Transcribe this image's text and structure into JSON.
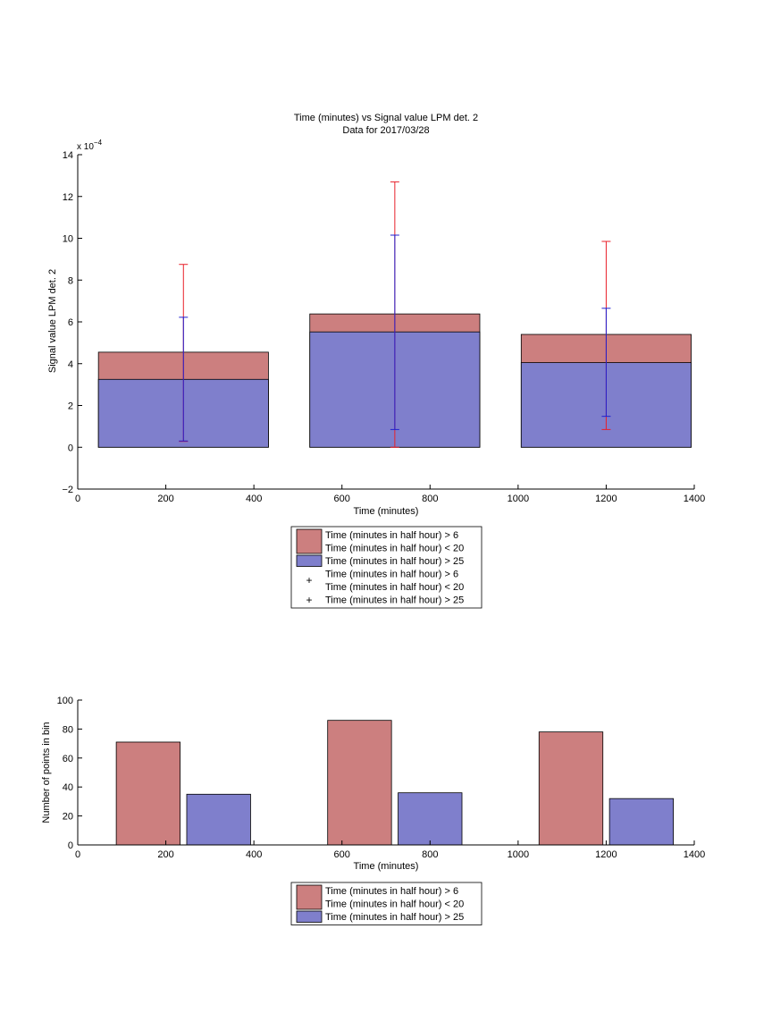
{
  "chart_data": [
    {
      "type": "bar",
      "title": "Time (minutes) vs Signal value LPM det. 2",
      "subtitle": "Data for 2017/03/28",
      "xlabel": "Time (minutes)",
      "ylabel": "Signal value LPM det. 2",
      "y_multiplier_label": "x 10",
      "y_multiplier_exponent": "−4",
      "xlim": [
        0,
        1400
      ],
      "ylim": [
        -2,
        14
      ],
      "xticks": [
        "0",
        "200",
        "400",
        "600",
        "800",
        "1000",
        "1200",
        "1400"
      ],
      "yticks": [
        "−2",
        "0",
        "2",
        "4",
        "6",
        "8",
        "10",
        "12",
        "14"
      ],
      "bar_range": [
        [
          47,
          433
        ],
        [
          527,
          913
        ],
        [
          1007,
          1393
        ]
      ],
      "series": [
        {
          "label_lines": [
            "Time (minutes in half hour) > 6",
            "Time (minutes in half hour) < 20"
          ],
          "color": "#cc7f7f",
          "x": [
            240,
            720,
            1200
          ],
          "values": [
            4.55,
            6.38,
            5.4
          ]
        },
        {
          "label_lines": [
            "Time (minutes in half hour) > 25"
          ],
          "color": "#7f7fcc",
          "x": [
            240,
            720,
            1200
          ],
          "values": [
            3.25,
            5.52,
            4.05
          ]
        }
      ],
      "errorbars": [
        {
          "label_lines": [
            "Time (minutes in half hour) > 6",
            "Time (minutes in half hour) < 20"
          ],
          "color": "#e8202a",
          "marker": "+",
          "x": [
            240,
            720,
            1200
          ],
          "center": [
            4.55,
            6.38,
            5.4
          ],
          "lower": [
            0.28,
            0.0,
            0.85
          ],
          "upper": [
            8.75,
            12.7,
            9.85
          ]
        },
        {
          "label_lines": [
            "Time (minutes in half hour) > 25"
          ],
          "color": "#2020d0",
          "marker": "+",
          "x": [
            240,
            720,
            1200
          ],
          "center": [
            3.25,
            5.52,
            4.05
          ],
          "lower": [
            0.3,
            0.85,
            1.48
          ],
          "upper": [
            6.22,
            10.15,
            6.65
          ]
        }
      ],
      "legend": "below"
    },
    {
      "type": "bar",
      "xlabel": "Time (minutes)",
      "ylabel": "Number of points in bin",
      "xlim": [
        0,
        1400
      ],
      "ylim": [
        0,
        100
      ],
      "xticks": [
        "0",
        "200",
        "400",
        "600",
        "800",
        "1000",
        "1200",
        "1400"
      ],
      "yticks": [
        "0",
        "20",
        "40",
        "60",
        "80",
        "100"
      ],
      "series": [
        {
          "label_lines": [
            "Time (minutes in half hour) > 6",
            "Time (minutes in half hour) < 20"
          ],
          "color": "#cc7f7f",
          "x": [
            160,
            640,
            1120
          ],
          "values": [
            71,
            86,
            78
          ]
        },
        {
          "label_lines": [
            "Time (minutes in half hour) > 25"
          ],
          "color": "#7f7fcc",
          "x": [
            320,
            800,
            1280
          ],
          "values": [
            35,
            36,
            32
          ]
        }
      ],
      "bar_width": 145,
      "legend": "below"
    }
  ]
}
